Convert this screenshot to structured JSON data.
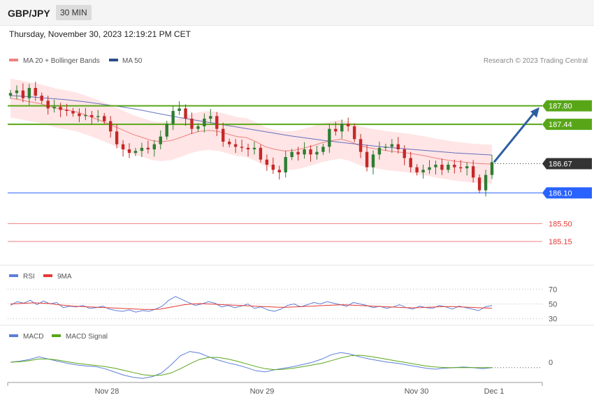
{
  "header": {
    "symbol": "GBP/JPY",
    "timeframe": "30 MIN",
    "datetime": "Thursday, November 30, 2023 12:19:21 PM CET"
  },
  "legend": {
    "ma20": "MA 20 + Bollinger Bands",
    "ma50": "MA 50",
    "credit": "Research © 2023 Trading Central",
    "rsi": "RSI",
    "rsi_ma": "9MA",
    "macd": "MACD",
    "macd_signal": "MACD Signal"
  },
  "colors": {
    "bull": "#2e7d32",
    "bear": "#c62828",
    "ma20": "#f08080",
    "band": "#ffe0e0",
    "ma50": "#3f51b5",
    "green_level": "#58a618",
    "blue_level": "#2962ff",
    "red_level": "#f08080",
    "current": "#333333",
    "arrow": "#2e5fa3",
    "rsi": "#5b7fd8",
    "rsi_ma": "#e53935",
    "macd": "#5b7fd8",
    "macd_signal": "#58a618"
  },
  "chart_data": [
    {
      "type": "candlestick",
      "title": "",
      "x_labels": [
        "Nov 28",
        "Nov 29",
        "Nov 30",
        "Dec 1"
      ],
      "levels": [
        {
          "value": 187.8,
          "label": "187.80",
          "kind": "resistance"
        },
        {
          "value": 187.44,
          "label": "187.44",
          "kind": "resistance"
        },
        {
          "value": 186.67,
          "label": "186.67",
          "kind": "current"
        },
        {
          "value": 186.1,
          "label": "186.10",
          "kind": "pivot"
        },
        {
          "value": 185.5,
          "label": "185.50",
          "kind": "support"
        },
        {
          "value": 185.15,
          "label": "185.15",
          "kind": "support"
        }
      ],
      "ylim": [
        184.85,
        188.45
      ],
      "closes": [
        188.05,
        188.1,
        187.95,
        188.15,
        188.0,
        187.9,
        187.75,
        187.78,
        187.72,
        187.7,
        187.65,
        187.6,
        187.62,
        187.58,
        187.6,
        187.5,
        187.3,
        187.05,
        186.95,
        186.88,
        186.92,
        186.98,
        186.95,
        187.05,
        187.2,
        187.45,
        187.7,
        187.75,
        187.55,
        187.35,
        187.4,
        187.55,
        187.6,
        187.35,
        187.1,
        187.05,
        187.0,
        186.98,
        186.95,
        186.98,
        186.75,
        186.65,
        186.55,
        186.5,
        186.8,
        186.9,
        186.85,
        186.95,
        186.85,
        186.9,
        187.0,
        187.35,
        187.3,
        187.45,
        187.4,
        187.15,
        186.9,
        186.6,
        186.85,
        186.98,
        187.0,
        187.05,
        186.95,
        186.78,
        186.6,
        186.5,
        186.55,
        186.6,
        186.65,
        186.55,
        186.65,
        186.6,
        186.58,
        186.62,
        186.4,
        186.15,
        186.45,
        186.7
      ],
      "ma20": [
        187.95,
        187.92,
        187.88,
        187.85,
        187.8,
        187.75,
        187.72,
        187.68,
        187.62,
        187.55,
        187.48,
        187.4,
        187.32,
        187.24,
        187.18,
        187.12,
        187.1,
        187.12,
        187.18,
        187.25,
        187.3,
        187.32,
        187.3,
        187.25,
        187.2,
        187.18,
        187.1,
        187.0,
        186.95,
        186.92,
        186.93,
        186.97,
        187.02,
        187.08,
        187.12,
        187.15,
        187.1,
        187.02,
        186.98,
        186.95,
        186.92,
        186.9,
        186.88,
        186.85,
        186.82,
        186.78,
        186.75,
        186.72,
        186.7,
        186.68,
        186.67,
        186.66
      ],
      "ma50": [
        188.0,
        187.98,
        187.95,
        187.92,
        187.88,
        187.83,
        187.78,
        187.72,
        187.65,
        187.58,
        187.52,
        187.46,
        187.4,
        187.34,
        187.28,
        187.22,
        187.17,
        187.12,
        187.08,
        187.04,
        187.0,
        186.97,
        186.94,
        186.91,
        186.88,
        186.86,
        186.84
      ]
    },
    {
      "type": "line",
      "name": "RSI",
      "ylim": [
        25,
        75
      ],
      "ticks": [
        70,
        50,
        30
      ],
      "rsi": [
        48,
        53,
        51,
        55,
        49,
        54,
        50,
        52,
        45,
        47,
        46,
        48,
        44,
        45,
        47,
        43,
        41,
        40,
        42,
        39,
        41,
        40,
        43,
        47,
        55,
        60,
        56,
        52,
        48,
        50,
        53,
        51,
        46,
        48,
        45,
        47,
        50,
        44,
        46,
        42,
        40,
        43,
        48,
        50,
        46,
        49,
        52,
        50,
        53,
        51,
        49,
        47,
        52,
        50,
        48,
        45,
        47,
        44,
        46,
        49,
        45,
        43,
        47,
        45,
        44,
        48,
        46,
        43,
        47,
        45,
        43,
        41,
        46,
        48
      ],
      "rsi_ma": [
        50,
        50.5,
        51,
        51.5,
        51,
        50.5,
        49,
        48,
        47,
        46.5,
        46,
        45.5,
        45,
        44.5,
        44,
        43.5,
        43,
        42.5,
        42.5,
        43,
        45,
        47,
        49,
        50,
        50.5,
        50,
        49.5,
        49,
        48.5,
        48,
        47.5,
        47,
        46.5,
        46,
        45.5,
        45.5,
        46,
        46.5,
        47,
        47.5,
        48,
        48.5,
        49,
        48.5,
        48,
        47.5,
        47,
        46.5,
        46,
        45.5,
        45,
        44.8,
        45,
        45.5,
        46,
        46.5,
        46.5,
        46,
        45.5,
        45,
        44.5,
        44.2
      ],
      "labels": [
        "70",
        "50",
        "30"
      ]
    },
    {
      "type": "line",
      "name": "MACD",
      "ylim": [
        -0.35,
        0.35
      ],
      "ticks": [
        0
      ],
      "labels": [
        "0"
      ],
      "macd": [
        0.0,
        0.02,
        0.05,
        0.1,
        0.06,
        0.02,
        -0.02,
        -0.05,
        -0.07,
        -0.08,
        -0.12,
        -0.18,
        -0.24,
        -0.28,
        -0.3,
        -0.27,
        -0.2,
        -0.05,
        0.12,
        0.2,
        0.17,
        0.1,
        0.04,
        -0.01,
        -0.05,
        -0.1,
        -0.16,
        -0.18,
        -0.14,
        -0.11,
        -0.08,
        -0.04,
        0.0,
        0.06,
        0.14,
        0.18,
        0.15,
        0.1,
        0.06,
        0.03,
        0.0,
        -0.02,
        -0.05,
        -0.08,
        -0.11,
        -0.13,
        -0.11,
        -0.1,
        -0.09,
        -0.1,
        -0.12,
        -0.1
      ],
      "macd_signal": [
        0.0,
        0.01,
        0.03,
        0.06,
        0.06,
        0.04,
        0.01,
        -0.02,
        -0.04,
        -0.06,
        -0.08,
        -0.11,
        -0.15,
        -0.19,
        -0.23,
        -0.25,
        -0.24,
        -0.2,
        -0.12,
        -0.03,
        0.05,
        0.09,
        0.09,
        0.06,
        0.02,
        -0.03,
        -0.08,
        -0.12,
        -0.14,
        -0.13,
        -0.11,
        -0.08,
        -0.05,
        -0.02,
        0.03,
        0.08,
        0.12,
        0.13,
        0.11,
        0.08,
        0.05,
        0.02,
        -0.01,
        -0.04,
        -0.07,
        -0.09,
        -0.1,
        -0.1,
        -0.1,
        -0.1,
        -0.1,
        -0.1
      ]
    }
  ]
}
